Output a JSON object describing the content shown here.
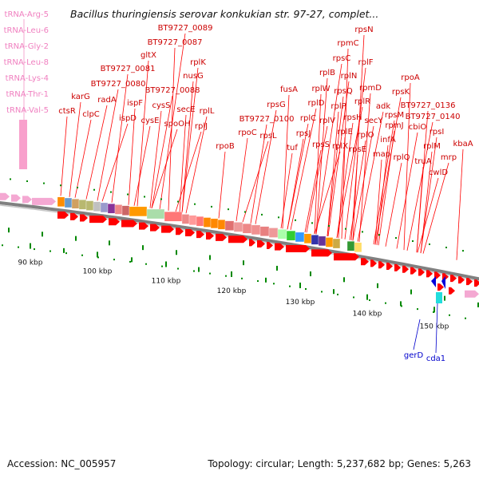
{
  "title": "Bacillus thuringiensis serovar konkukian str. 97-27, complet...",
  "footer": {
    "accession": "Accession: NC_005957",
    "summary": "Topology: circular; Length: 5,237,682 bp; Genes: 5,263"
  },
  "colors": {
    "gene_label": "#cc0000",
    "trna_label": "#f080c0",
    "forward_gene": "#ff0000",
    "other_gene": "#0000cc",
    "tick": "#008800",
    "backbone": "#808080"
  },
  "trna_labels": [
    "tRNA-Arg-5",
    "tRNA-Leu-6",
    "tRNA-Gly-2",
    "tRNA-Leu-8",
    "tRNA-Lys-4",
    "tRNA-Thr-1",
    "tRNA-Val-5"
  ],
  "gene_labels": [
    "ctsR",
    "karG",
    "clpC",
    "radA",
    "ispD",
    "ispF",
    "gltX",
    "BT9727_0081",
    "BT9727_0080",
    "BT9727_0089",
    "BT9727_0087",
    "cysS",
    "cysE",
    "BT9727_0088",
    "spoOH",
    "secE",
    "nusG",
    "rplK",
    "rplL",
    "rplJ",
    "rpoB",
    "rpoC",
    "BT9727_0100",
    "rpsG",
    "rpsL",
    "fusA",
    "tuf",
    "rpsJ",
    "rplC",
    "rplD",
    "rplW",
    "rplB",
    "rpsS",
    "rplV",
    "rpsC",
    "rpmC",
    "rplP",
    "rpsQ",
    "rplN",
    "rplX",
    "rplE",
    "rpsN",
    "rpsH",
    "rplF",
    "rplR",
    "rpsE",
    "rpmD",
    "rplO",
    "secY",
    "adk",
    "map",
    "infA",
    "rpmJ",
    "rpsM",
    "rpsK",
    "rpoA",
    "BT9727_0136",
    "rplQ",
    "cbiO",
    "BT9727_0140",
    "truA",
    "rplM",
    "rpsI",
    "cwlD",
    "mrp",
    "kbaA"
  ],
  "other_gene_labels": [
    "gerD",
    "cda1"
  ],
  "scale_labels": [
    "90 kbp",
    "100 kbp",
    "110 kbp",
    "120 kbp",
    "130 kbp",
    "140 kbp",
    "150 kbp"
  ]
}
